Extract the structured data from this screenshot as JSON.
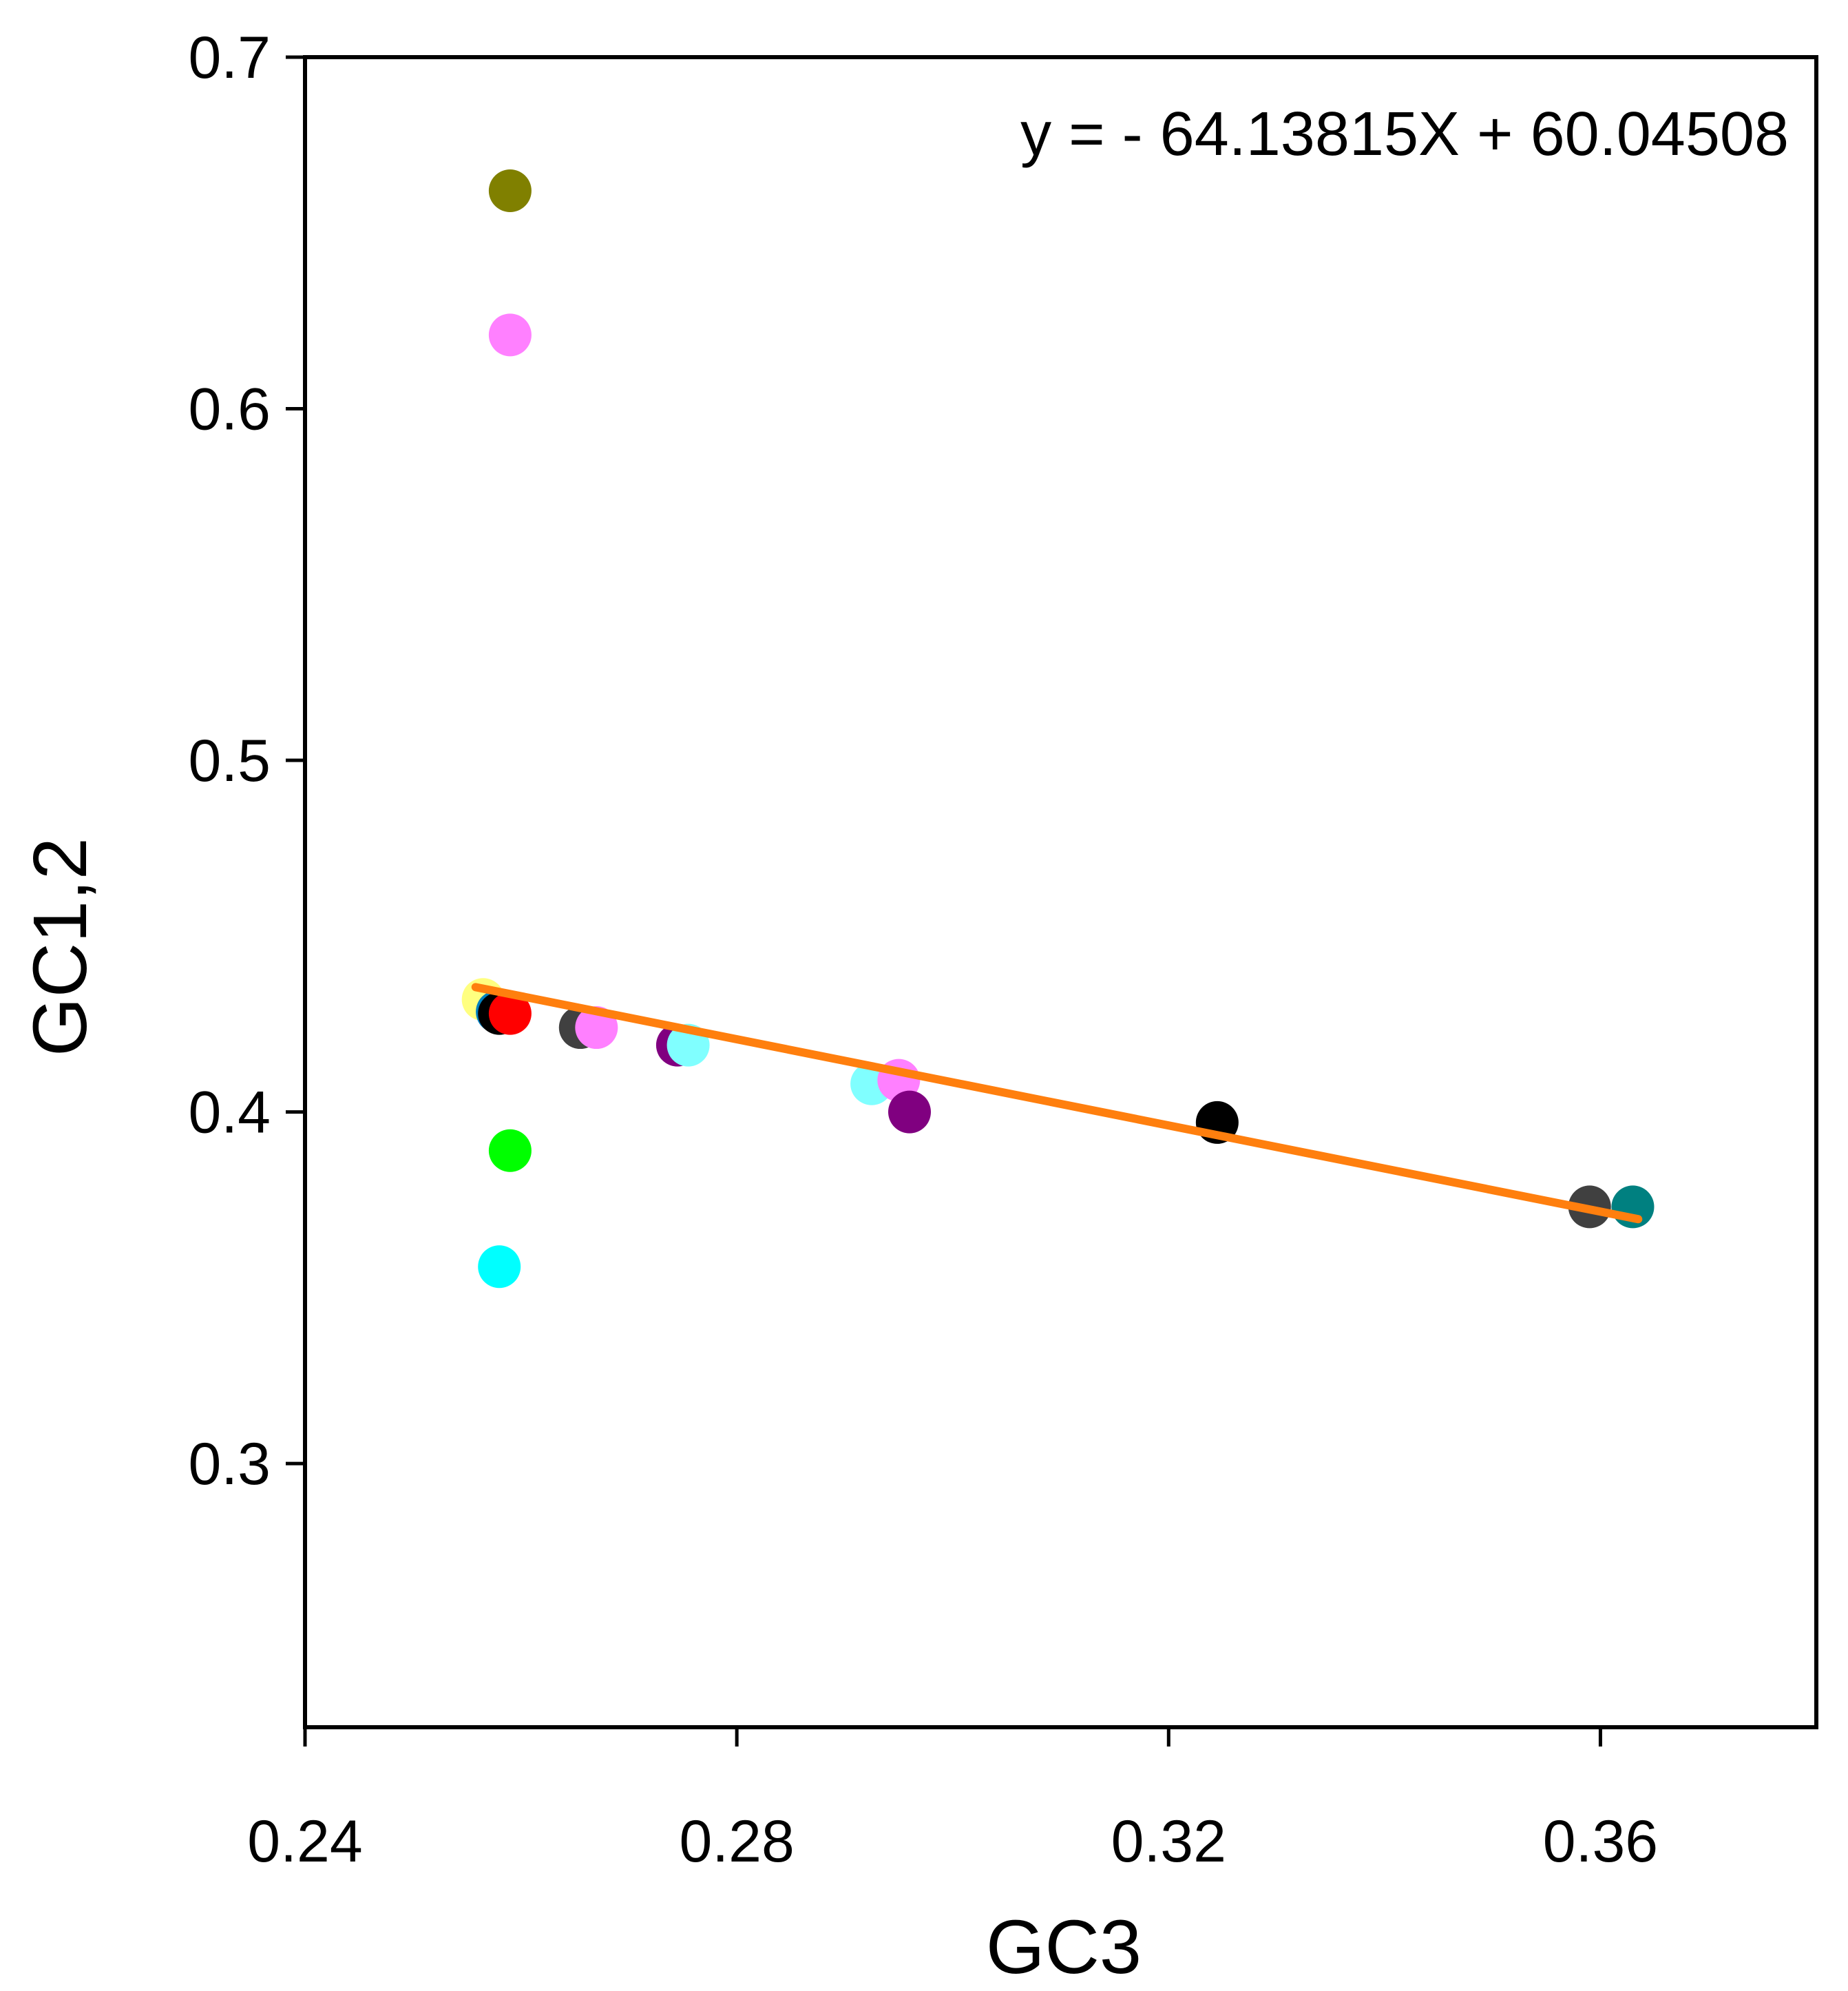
{
  "chart_data": {
    "type": "scatter",
    "title": "",
    "xlabel": "GC3",
    "ylabel": "GC1,2",
    "xlim": [
      0.24,
      0.38
    ],
    "ylim": [
      0.225,
      0.7
    ],
    "x_ticks": [
      0.24,
      0.28,
      0.32,
      0.36
    ],
    "x_tick_labels": [
      "0.24",
      "0.28",
      "0.32",
      "0.36"
    ],
    "y_ticks": [
      0.3,
      0.4,
      0.5,
      0.6,
      0.7
    ],
    "y_tick_labels": [
      "0.3",
      "0.4",
      "0.5",
      "0.6",
      "0.7"
    ],
    "grid": false,
    "equation": "y = - 64.13815X + 60.04508",
    "trendline": {
      "color": "#ff7f0e",
      "x": [
        0.2558,
        0.3635
      ],
      "y": [
        0.4355,
        0.3695
      ]
    },
    "points": [
      {
        "x": 0.259,
        "y": 0.662,
        "color": "#808000"
      },
      {
        "x": 0.259,
        "y": 0.621,
        "color": "#ff80ff"
      },
      {
        "x": 0.2565,
        "y": 0.432,
        "color": "#ffff80"
      },
      {
        "x": 0.2578,
        "y": 0.4285,
        "color": "#0080c0"
      },
      {
        "x": 0.258,
        "y": 0.428,
        "color": "#000000"
      },
      {
        "x": 0.259,
        "y": 0.428,
        "color": "#ff0000"
      },
      {
        "x": 0.259,
        "y": 0.389,
        "color": "#00ff00"
      },
      {
        "x": 0.258,
        "y": 0.356,
        "color": "#00ffff"
      },
      {
        "x": 0.2655,
        "y": 0.424,
        "color": "#404040"
      },
      {
        "x": 0.267,
        "y": 0.424,
        "color": "#ff80ff"
      },
      {
        "x": 0.2745,
        "y": 0.419,
        "color": "#800080"
      },
      {
        "x": 0.2755,
        "y": 0.419,
        "color": "#80ffff"
      },
      {
        "x": 0.2925,
        "y": 0.408,
        "color": "#80ffff"
      },
      {
        "x": 0.295,
        "y": 0.409,
        "color": "#ff80ff"
      },
      {
        "x": 0.296,
        "y": 0.4,
        "color": "#800080"
      },
      {
        "x": 0.3245,
        "y": 0.397,
        "color": "#000000"
      },
      {
        "x": 0.359,
        "y": 0.373,
        "color": "#404040"
      },
      {
        "x": 0.363,
        "y": 0.373,
        "color": "#008080"
      }
    ]
  }
}
